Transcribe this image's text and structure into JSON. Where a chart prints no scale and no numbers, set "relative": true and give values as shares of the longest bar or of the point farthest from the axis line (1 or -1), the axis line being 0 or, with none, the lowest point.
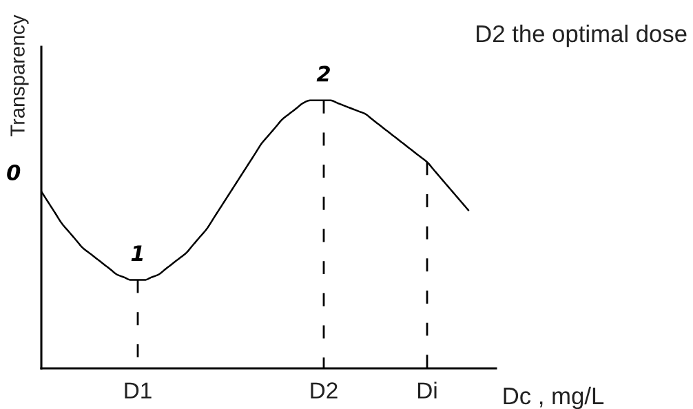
{
  "chart_data": {
    "type": "line",
    "relative": true,
    "xlabel": "Dc , mg/L",
    "ylabel": "Transparency",
    "categories": [
      null,
      null,
      null,
      null,
      null,
      null,
      null,
      null,
      null,
      null,
      null,
      null,
      null,
      null,
      "D1",
      null,
      null,
      null,
      null,
      null,
      null,
      null,
      null,
      null,
      null,
      null,
      null,
      null,
      null,
      null,
      null,
      null,
      null,
      null,
      null,
      null,
      null,
      null,
      null,
      null,
      null,
      "D2",
      null,
      null,
      null,
      null,
      null,
      null,
      null,
      null,
      null,
      null,
      null,
      null,
      null,
      null,
      "Di",
      null,
      null,
      null,
      null,
      null,
      null,
      null,
      null,
      null,
      null
    ],
    "series": [
      {
        "color": "#000000",
        "values": [
          0.66,
          0.62,
          0.58,
          0.54,
          0.51,
          0.48,
          0.45,
          0.43,
          0.41,
          0.39,
          0.37,
          0.35,
          0.34,
          0.33,
          0.33,
          0.33,
          0.34,
          0.35,
          0.37,
          0.39,
          0.41,
          0.43,
          0.46,
          0.49,
          0.52,
          0.56,
          0.6,
          0.64,
          0.68,
          0.72,
          0.76,
          0.8,
          0.84,
          0.87,
          0.9,
          0.93,
          0.95,
          0.97,
          0.99,
          1,
          1,
          1,
          1,
          0.99,
          0.98,
          0.97,
          0.96,
          0.95,
          0.93,
          0.91,
          0.89,
          0.87,
          0.85,
          0.83,
          0.81,
          0.79,
          0.77,
          0.74,
          0.71,
          0.68,
          0.65,
          0.62,
          0.59,
          null,
          null,
          null,
          null
        ]
      }
    ],
    "ref_lines": [
      {
        "axis": "x",
        "value": "D1",
        "color": "#000000",
        "line_style": "dashed"
      },
      {
        "axis": "x",
        "value": "D2",
        "color": "#000000",
        "line_style": "dashed"
      },
      {
        "axis": "x",
        "value": "Di",
        "color": "#000000",
        "line_style": "dashed"
      }
    ],
    "annotations": [
      "0",
      {
        "text": "1",
        "x": "D1",
        "y": 0.33
      },
      {
        "text": "2",
        "x": "D2",
        "y": 1
      },
      "D2 the optimal dose"
    ],
    "tick_labels": "x",
    "marker": "none",
    "line_style": "solid",
    "legend": false
  }
}
